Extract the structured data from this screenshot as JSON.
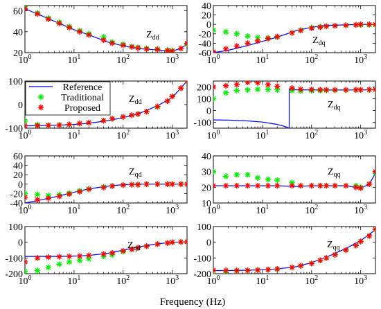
{
  "figure": {
    "xlabel": "Frequency (Hz)",
    "tick_base": "10",
    "tick_exps": [
      "0",
      "1",
      "2",
      "3"
    ],
    "legend": [
      "Reference",
      "Traditional",
      "Proposed"
    ]
  },
  "colors": {
    "reference": "#0000ff",
    "traditional": "#00ee00",
    "proposed": "#ff0000"
  },
  "chart_data": [
    {
      "type": "line",
      "xscale": "log",
      "xlim": [
        1,
        2000
      ],
      "ylim": [
        20,
        65
      ],
      "yticks": [
        20,
        40,
        60
      ],
      "label_main": "Z",
      "label_sub": "dd",
      "series": [
        {
          "name": "Reference",
          "style": "line",
          "x": [
            1,
            2,
            5,
            10,
            20,
            50,
            100,
            200,
            500,
            1000,
            1500,
            2000
          ],
          "y": [
            62,
            56,
            48,
            42,
            37,
            30,
            26.5,
            24,
            22.5,
            21.5,
            24,
            28
          ]
        },
        {
          "name": "Traditional",
          "style": "markers",
          "x": [
            1,
            1.8,
            3,
            5,
            8,
            13,
            20,
            40,
            60,
            100,
            150,
            200,
            300,
            500,
            800,
            1000,
            1500,
            2000
          ],
          "y": [
            64,
            58,
            53,
            49,
            45,
            41,
            38,
            35,
            30,
            28,
            26,
            25,
            24,
            23.5,
            22.5,
            22,
            24,
            28
          ]
        },
        {
          "name": "Proposed",
          "style": "markers",
          "x": [
            1,
            1.8,
            3,
            5,
            8,
            13,
            20,
            40,
            60,
            100,
            150,
            200,
            300,
            500,
            800,
            1000,
            1500,
            2000
          ],
          "y": [
            62,
            57,
            52,
            48,
            44,
            40,
            37,
            32,
            29,
            27,
            25.5,
            24.5,
            23.5,
            23,
            22,
            21.5,
            24,
            29
          ]
        }
      ]
    },
    {
      "type": "line",
      "xscale": "log",
      "xlim": [
        1,
        2000
      ],
      "ylim": [
        -60,
        40
      ],
      "yticks": [
        -60,
        -40,
        -20,
        0,
        20,
        40
      ],
      "label_main": "Z",
      "label_sub": "dq",
      "series": [
        {
          "name": "Reference",
          "style": "line",
          "x": [
            1,
            2,
            5,
            10,
            20,
            50,
            100,
            200,
            500,
            1000,
            2000
          ],
          "y": [
            -60,
            -55,
            -45,
            -36,
            -27,
            -13,
            -6,
            -2,
            -1,
            0,
            0
          ]
        },
        {
          "name": "Traditional",
          "style": "markers",
          "x": [
            1,
            1.8,
            3,
            5,
            8,
            13,
            20,
            40,
            60,
            100,
            150,
            200,
            300,
            500,
            800,
            1000,
            1500,
            2000
          ],
          "y": [
            -12,
            -16,
            -20,
            -25,
            -28,
            -29,
            -27,
            -18,
            -12,
            -7,
            -5,
            -4,
            -3,
            -2,
            -1,
            -1,
            -1,
            -1
          ]
        },
        {
          "name": "Proposed",
          "style": "markers",
          "x": [
            1,
            1.8,
            3,
            5,
            8,
            13,
            20,
            40,
            60,
            100,
            150,
            200,
            300,
            500,
            800,
            1000,
            1500,
            2000
          ],
          "y": [
            -58,
            -52,
            -46,
            -40,
            -35,
            -30,
            -26,
            -18,
            -13,
            -8,
            -6,
            -4,
            -3,
            -2,
            -1,
            0,
            0,
            0
          ]
        }
      ]
    },
    {
      "type": "line",
      "xscale": "log",
      "xlim": [
        1,
        2000
      ],
      "ylim": [
        -100,
        100
      ],
      "yticks": [
        -100,
        0,
        100
      ],
      "label_main": "Z",
      "label_sub": "dd",
      "series": [
        {
          "name": "Reference",
          "style": "line",
          "x": [
            1,
            2,
            5,
            10,
            20,
            50,
            100,
            200,
            500,
            1000,
            2000
          ],
          "y": [
            -90,
            -89,
            -87,
            -84,
            -79,
            -68,
            -55,
            -40,
            -5,
            30,
            100
          ]
        },
        {
          "name": "Traditional",
          "style": "markers",
          "x": [
            1,
            1.8,
            3,
            5,
            8,
            13,
            20,
            40,
            60,
            100,
            150,
            200,
            300,
            500,
            800,
            1000,
            1500,
            2000
          ],
          "y": [
            -70,
            -85,
            -87,
            -86,
            -84,
            -80,
            -77,
            -68,
            -60,
            -52,
            -45,
            -40,
            -30,
            -10,
            15,
            35,
            70,
            100
          ]
        },
        {
          "name": "Proposed",
          "style": "markers",
          "x": [
            1,
            1.8,
            3,
            5,
            8,
            13,
            20,
            40,
            60,
            100,
            150,
            200,
            300,
            500,
            800,
            1000,
            1500,
            2000
          ],
          "y": [
            -90,
            -89,
            -88,
            -87,
            -84,
            -80,
            -77,
            -68,
            -60,
            -52,
            -45,
            -40,
            -30,
            -8,
            15,
            35,
            70,
            100
          ]
        }
      ]
    },
    {
      "type": "line",
      "xscale": "log",
      "xlim": [
        1,
        2000
      ],
      "ylim": [
        -150,
        250
      ],
      "yticks": [
        -100,
        0,
        100,
        200
      ],
      "label_main": "Z",
      "label_sub": "dq",
      "series": [
        {
          "name": "Reference",
          "style": "line",
          "x": [
            1,
            2,
            5,
            10,
            20,
            30,
            35,
            35.01,
            50,
            100,
            200,
            500,
            1000,
            2000
          ],
          "y": [
            -80,
            -82,
            -88,
            -98,
            -118,
            -138,
            -150,
            180,
            176,
            175,
            174,
            175,
            175,
            176
          ]
        },
        {
          "name": "Traditional",
          "style": "markers",
          "x": [
            1,
            1.8,
            3,
            5,
            8,
            13,
            20,
            40,
            60,
            100,
            150,
            200,
            300,
            500,
            800,
            1000,
            1500,
            2000
          ],
          "y": [
            100,
            150,
            170,
            175,
            180,
            178,
            175,
            170,
            165,
            168,
            170,
            171,
            172,
            173,
            174,
            175,
            176,
            177
          ]
        },
        {
          "name": "Proposed",
          "style": "markers",
          "x": [
            1,
            1.8,
            3,
            5,
            8,
            13,
            20,
            40,
            60,
            100,
            150,
            200,
            300,
            500,
            800,
            1000,
            1500,
            2000
          ],
          "y": [
            200,
            210,
            220,
            240,
            235,
            220,
            205,
            190,
            180,
            178,
            176,
            175,
            175,
            175,
            176,
            176,
            177,
            178
          ]
        }
      ]
    },
    {
      "type": "line",
      "xscale": "log",
      "xlim": [
        1,
        2000
      ],
      "ylim": [
        -40,
        60
      ],
      "yticks": [
        -40,
        -20,
        0,
        20,
        40,
        60
      ],
      "label_main": "Z",
      "label_sub": "qd",
      "series": [
        {
          "name": "Reference",
          "style": "line",
          "x": [
            1,
            2,
            5,
            10,
            20,
            50,
            100,
            200,
            500,
            1000,
            2000
          ],
          "y": [
            -40,
            -34,
            -25,
            -17,
            -10,
            -4,
            -1,
            0,
            0,
            0,
            0
          ]
        },
        {
          "name": "Traditional",
          "style": "markers",
          "x": [
            1,
            1.8,
            3,
            5,
            8,
            13,
            20,
            40,
            60,
            100,
            150,
            200,
            300,
            500,
            800,
            1000,
            1500,
            2000
          ],
          "y": [
            -20,
            -22,
            -24,
            -22,
            -19,
            -14,
            -10,
            -6,
            -4,
            -2,
            -1,
            -1,
            0,
            0,
            0,
            0,
            0,
            0
          ]
        },
        {
          "name": "Proposed",
          "style": "markers",
          "x": [
            1,
            1.8,
            3,
            5,
            8,
            13,
            20,
            40,
            60,
            100,
            150,
            200,
            300,
            500,
            800,
            1000,
            1500,
            2000
          ],
          "y": [
            -28,
            -33,
            -30,
            -26,
            -21,
            -16,
            -11,
            -7,
            -4,
            -2,
            -1,
            -1,
            0,
            0,
            0,
            0,
            0,
            0
          ]
        }
      ]
    },
    {
      "type": "line",
      "xscale": "log",
      "xlim": [
        1,
        2000
      ],
      "ylim": [
        10,
        40
      ],
      "yticks": [
        10,
        20,
        30,
        40
      ],
      "label_main": "Z",
      "label_sub": "qq",
      "series": [
        {
          "name": "Reference",
          "style": "line",
          "x": [
            1,
            2,
            5,
            10,
            20,
            50,
            100,
            200,
            500,
            1000,
            1500,
            2000
          ],
          "y": [
            21,
            21,
            21,
            21,
            21,
            20.5,
            21,
            21,
            21,
            19.5,
            22,
            29
          ]
        },
        {
          "name": "Traditional",
          "style": "markers",
          "x": [
            1,
            1.8,
            3,
            5,
            8,
            13,
            20,
            40,
            60,
            100,
            150,
            200,
            300,
            500,
            800,
            1000,
            1500,
            2000
          ],
          "y": [
            30,
            27,
            28,
            28,
            26,
            25,
            24.5,
            23,
            21,
            21,
            21,
            21,
            21,
            21,
            21,
            20,
            22,
            29
          ]
        },
        {
          "name": "Proposed",
          "style": "markers",
          "x": [
            1,
            1.8,
            3,
            5,
            8,
            13,
            20,
            40,
            60,
            100,
            150,
            200,
            300,
            500,
            800,
            1000,
            1500,
            2000
          ],
          "y": [
            21,
            21,
            21,
            21,
            21,
            21,
            21,
            21,
            21,
            21,
            21,
            21,
            21,
            21,
            20,
            19.5,
            22,
            30
          ]
        }
      ]
    },
    {
      "type": "line",
      "xscale": "log",
      "xlim": [
        1,
        2000
      ],
      "ylim": [
        -200,
        100
      ],
      "yticks": [
        -200,
        -100,
        0,
        100
      ],
      "label_main": "Z",
      "label_sub": "qd",
      "series": [
        {
          "name": "Reference",
          "style": "line",
          "x": [
            1,
            2,
            5,
            10,
            20,
            50,
            100,
            200,
            500,
            1000,
            2000
          ],
          "y": [
            -90,
            -90,
            -90,
            -88,
            -84,
            -70,
            -50,
            -30,
            -10,
            0,
            2
          ]
        },
        {
          "name": "Traditional",
          "style": "markers",
          "x": [
            1,
            1.8,
            3,
            5,
            8,
            13,
            20,
            40,
            60,
            100,
            150,
            200,
            300,
            500,
            800,
            1000,
            1500,
            2000
          ],
          "y": [
            -185,
            -180,
            -160,
            -140,
            -125,
            -115,
            -105,
            -90,
            -80,
            -60,
            -45,
            -35,
            -25,
            -12,
            -5,
            0,
            2,
            3
          ]
        },
        {
          "name": "Proposed",
          "style": "markers",
          "x": [
            1,
            1.8,
            3,
            5,
            8,
            13,
            20,
            40,
            60,
            100,
            150,
            200,
            300,
            500,
            800,
            1000,
            1500,
            2000
          ],
          "y": [
            -125,
            -100,
            -95,
            -92,
            -90,
            -88,
            -84,
            -75,
            -68,
            -55,
            -45,
            -35,
            -25,
            -12,
            -5,
            0,
            2,
            3
          ]
        }
      ]
    },
    {
      "type": "line",
      "xscale": "log",
      "xlim": [
        1,
        2000
      ],
      "ylim": [
        -200,
        100
      ],
      "yticks": [
        -200,
        -100,
        0,
        100
      ],
      "label_main": "Z",
      "label_sub": "qq",
      "series": [
        {
          "name": "Reference",
          "style": "line",
          "x": [
            1,
            2,
            5,
            10,
            20,
            50,
            100,
            200,
            500,
            1000,
            2000
          ],
          "y": [
            -180,
            -180,
            -178,
            -175,
            -170,
            -155,
            -130,
            -95,
            -40,
            10,
            80
          ]
        },
        {
          "name": "Traditional",
          "style": "markers",
          "x": [
            1,
            1.8,
            3,
            5,
            8,
            13,
            20,
            40,
            60,
            100,
            150,
            200,
            300,
            500,
            800,
            1000,
            1500,
            2000
          ],
          "y": [
            -205,
            -190,
            -182,
            -180,
            -178,
            -175,
            -172,
            -160,
            -150,
            -135,
            -115,
            -100,
            -80,
            -50,
            -20,
            5,
            40,
            80
          ]
        },
        {
          "name": "Proposed",
          "style": "markers",
          "x": [
            1,
            1.8,
            3,
            5,
            8,
            13,
            20,
            40,
            60,
            100,
            150,
            200,
            300,
            500,
            800,
            1000,
            1500,
            2000
          ],
          "y": [
            -178,
            -180,
            -180,
            -179,
            -177,
            -174,
            -170,
            -160,
            -150,
            -135,
            -115,
            -100,
            -80,
            -50,
            -20,
            5,
            40,
            82
          ]
        }
      ]
    }
  ]
}
